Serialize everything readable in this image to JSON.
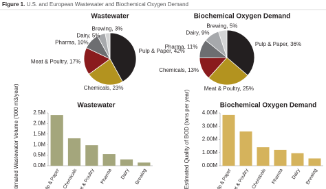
{
  "caption": {
    "label": "Figure 1.",
    "text": "U.S. and European Wastewater and Biochemical Oxygen Demand"
  },
  "chart_data": [
    {
      "type": "pie",
      "title": "Wastewater",
      "values": [
        42,
        23,
        17,
        10,
        5,
        3
      ],
      "value_labels": [
        "Pulp & Paper, 42%",
        "Chemicals, 23%",
        "Meat & Poultry, 17%",
        "Pharma, 10%",
        "Dairy, 5%",
        "Brewing, 3%"
      ],
      "colors": [
        "#231f20",
        "#b3931f",
        "#8a1b1d",
        "#6d6e71",
        "#a7a9ac",
        "#d4d5d6"
      ]
    },
    {
      "type": "pie",
      "title": "Biochemical Oxygen Demand",
      "values": [
        36,
        25,
        13,
        11,
        9,
        5
      ],
      "value_labels": [
        "Pulp & Paper, 36%",
        "Meat & Poultry, 25%",
        "Chemicals, 13%",
        "Pharma, 11%",
        "Dairy, 9%",
        "Brewing, 5%"
      ],
      "colors": [
        "#231f20",
        "#b3931f",
        "#8a1b1d",
        "#6d6e71",
        "#a7a9ac",
        "#d4d5d6"
      ]
    },
    {
      "type": "bar",
      "title": "Wastewater",
      "y_label": "Estimated Wastewater Volume ('000 m3/year)",
      "categories": [
        "Pulp & Paper",
        "Chemicals",
        "Meat & Poultry",
        "Pharma",
        "Dairy",
        "Brewing"
      ],
      "values": [
        2400000,
        1300000,
        970000,
        550000,
        300000,
        150000
      ],
      "color": "#a4a67c",
      "ylim": [
        0,
        2500000
      ],
      "yticks": [
        {
          "value": 0,
          "label": "0.0M"
        },
        {
          "value": 500000,
          "label": "0.5M"
        },
        {
          "value": 1000000,
          "label": "1.0M"
        },
        {
          "value": 1500000,
          "label": "1.5M"
        },
        {
          "value": 2000000,
          "label": "2.0M"
        },
        {
          "value": 2500000,
          "label": "2.5M"
        }
      ]
    },
    {
      "type": "bar",
      "title": "Biochemical Oxygen Demand",
      "y_label": "Estimated Quality of BOD (tons per year)",
      "categories": [
        "Pulp & Paper",
        "Meat & Poultry",
        "Chemicals",
        "Pharma",
        "Dairy",
        "Brewing"
      ],
      "values": [
        3850000,
        2600000,
        1400000,
        1200000,
        950000,
        550000
      ],
      "color": "#d5b35c",
      "ylim": [
        0,
        4000000
      ],
      "yticks": [
        {
          "value": 0,
          "label": "0.00M"
        },
        {
          "value": 1000000,
          "label": "1.00M"
        },
        {
          "value": 2000000,
          "label": "2.00M"
        },
        {
          "value": 3000000,
          "label": "3.00M"
        },
        {
          "value": 4000000,
          "label": "4.00M"
        }
      ]
    }
  ]
}
